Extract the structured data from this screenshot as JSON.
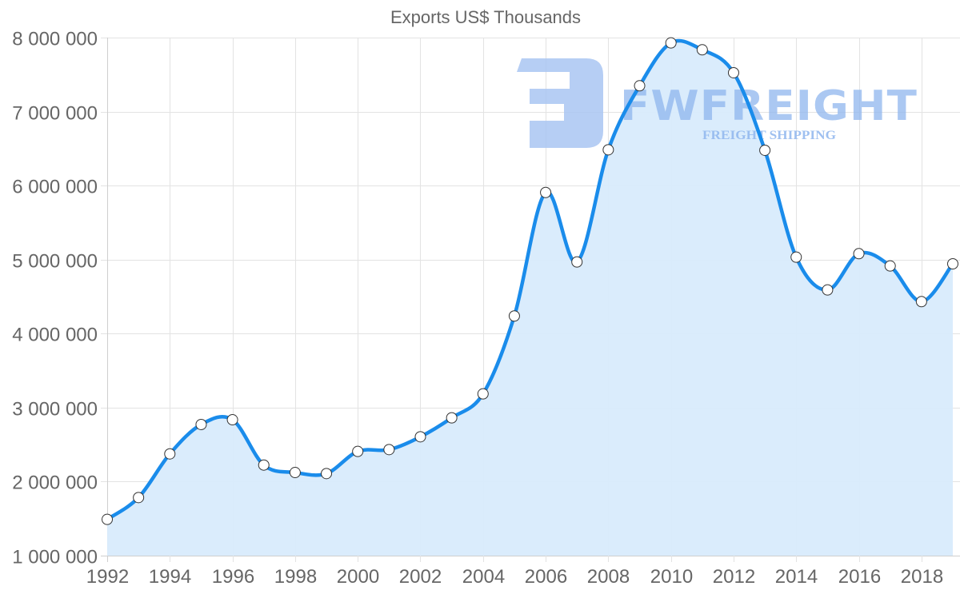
{
  "chart_data": {
    "type": "line",
    "title": "Exports US$ Thousands",
    "xlabel": "",
    "ylabel": "",
    "x": [
      1992,
      1993,
      1994,
      1995,
      1996,
      1997,
      1998,
      1999,
      2000,
      2001,
      2002,
      2003,
      2004,
      2005,
      2006,
      2007,
      2008,
      2009,
      2010,
      2011,
      2012,
      2013,
      2014,
      2015,
      2016,
      2017,
      2018,
      2019
    ],
    "series": [
      {
        "name": "Exports US$ Thousands",
        "values": [
          1490000,
          1785000,
          2375000,
          2772000,
          2836000,
          2224000,
          2123000,
          2109000,
          2408000,
          2433000,
          2606000,
          2862000,
          3186000,
          4238000,
          5907000,
          4968000,
          6484000,
          7349000,
          7928000,
          7835000,
          7525000,
          6477000,
          5033000,
          4590000,
          5080000,
          4914000,
          4432000,
          4943000
        ]
      }
    ],
    "ylim": [
      1000000,
      8000000
    ],
    "xlim": [
      1992,
      2019
    ],
    "y_ticks": [
      "1 000 000",
      "2 000 000",
      "3 000 000",
      "4 000 000",
      "5 000 000",
      "6 000 000",
      "7 000 000",
      "8 000 000"
    ],
    "x_ticks": [
      "1992",
      "1994",
      "1996",
      "1998",
      "2000",
      "2002",
      "2004",
      "2006",
      "2008",
      "2010",
      "2012",
      "2014",
      "2016",
      "2018"
    ],
    "grid": true,
    "legend": "none",
    "fill": true,
    "colors": {
      "line": "#1a8ceb",
      "fill": "#d8ebfc",
      "marker_fill": "#ffffff",
      "marker_stroke": "#333333"
    }
  },
  "watermark": {
    "brand": "FWFREIGHT",
    "tagline": "FREIGHT SHIPPING",
    "color": "#8fb6ee"
  }
}
